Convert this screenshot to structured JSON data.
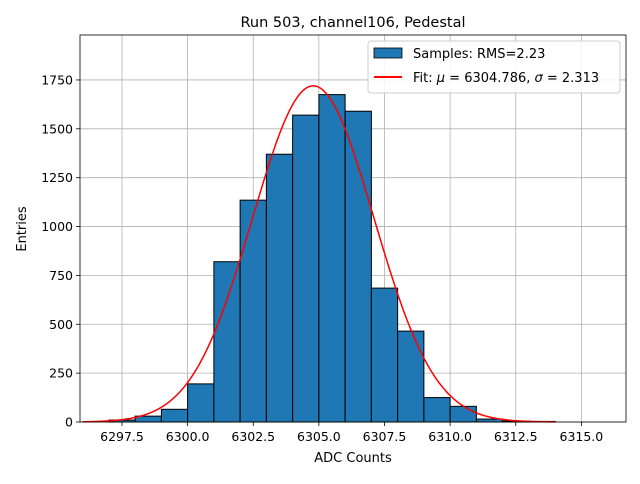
{
  "chart_data": {
    "type": "bar",
    "title": "Run 503, channel106, Pedestal",
    "xlabel": "ADC Counts",
    "ylabel": "Entries",
    "xlim": [
      6295.9,
      6316.7
    ],
    "ylim": [
      0,
      1980
    ],
    "xticks": [
      6297.5,
      6300.0,
      6302.5,
      6305.0,
      6307.5,
      6310.0,
      6312.5,
      6315.0
    ],
    "xtick_labels": [
      "6297.5",
      "6300.0",
      "6302.5",
      "6305.0",
      "6307.5",
      "6310.0",
      "6312.5",
      "6315.0"
    ],
    "yticks": [
      0,
      250,
      500,
      750,
      1000,
      1250,
      1500,
      1750
    ],
    "ytick_labels": [
      "0",
      "250",
      "500",
      "750",
      "1000",
      "1250",
      "1500",
      "1750"
    ],
    "grid": true,
    "legend_position": "top-right",
    "histogram": {
      "name": "Samples: RMS=2.23",
      "color": "#1f77b4",
      "edge_color": "#000000",
      "bin_edges": [
        6297,
        6298,
        6299,
        6300,
        6301,
        6302,
        6303,
        6304,
        6305,
        6306,
        6307,
        6308,
        6309,
        6310,
        6311,
        6312,
        6313,
        6314
      ],
      "counts": [
        10,
        30,
        65,
        195,
        820,
        1135,
        1370,
        1570,
        1675,
        1590,
        685,
        465,
        125,
        80,
        15,
        5,
        3
      ]
    },
    "fit": {
      "name": "Fit: μ = 6304.786, σ = 2.313",
      "name_parts": [
        "Fit: ",
        "μ",
        " = 6304.786, ",
        "σ",
        " = 2.313"
      ],
      "color": "#ff0000",
      "mu": 6304.786,
      "sigma": 2.313,
      "amplitude": 1720,
      "x_range": [
        6296,
        6314
      ]
    }
  }
}
